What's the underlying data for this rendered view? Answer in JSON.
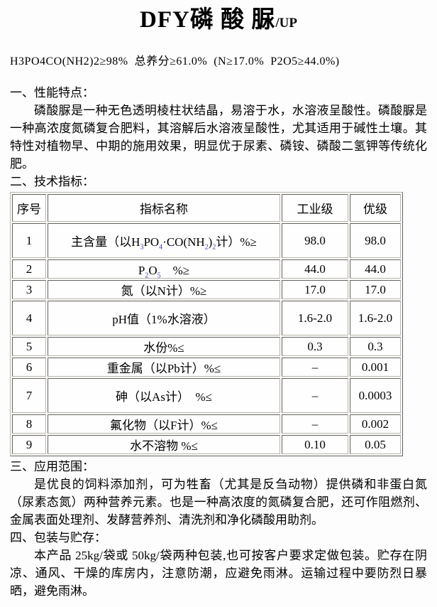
{
  "colors": {
    "background": "#fdfdfd",
    "text": "#000000",
    "subscript_digits": "#3a3aad",
    "table_border": "#b8b4aa"
  },
  "title": {
    "main": "DFY磷 酸 脲",
    "suffix": "/UP"
  },
  "formula_line": "H3PO4CO(NH2)2≥98%  总养分≥61.0%  (N≥17.0%  P2O5≥44.0%)",
  "sections": {
    "performance": {
      "heading": "一、性能特点：",
      "body": "磷酸脲是一种无色透明棱柱状结晶，易溶于水，水溶液呈酸性。磷酸脲是一种高浓度氮磷复合肥料，其溶解后水溶液呈酸性，尤其适用于碱性土壤。其特性对植物早、中期的施用效果，明显优于尿素、磷铵、磷酸二氢钾等传统化肥。"
    },
    "specs": {
      "heading": "二、技术指标："
    },
    "application": {
      "heading": "三、应用范围：",
      "body": "是优良的饲料添加剂，可为牲畜（尤其是反刍动物）提供磷和非蛋白氮（尿素态氮）两种营养元素。也是一种高浓度的氮磷复合肥，还可作阻燃剂、金属表面处理剂、发酵营养剂、清洗剂和净化磷酸用助剂。"
    },
    "packaging": {
      "heading": "四、包装与贮存：",
      "body": "本产品 25kg/袋或 50kg/袋两种包装,也可按客户要求定做包装。贮存在阴凉、通风、干燥的库房内，注意防潮，应避免雨淋。运输过程中要防烈日暴晒，避免雨淋。"
    }
  },
  "table": {
    "headers": [
      "序号",
      "指标名称",
      "工业级",
      "优级"
    ],
    "rows": [
      {
        "no": "1",
        "name": [
          {
            "t": "主含量（以H"
          },
          {
            "sub": "3"
          },
          {
            "t": "PO"
          },
          {
            "sub": "4"
          },
          {
            "t": "·CO(NH"
          },
          {
            "sub": "2"
          },
          {
            "t": ")"
          },
          {
            "sub": "2"
          },
          {
            "t": "计）%≥"
          }
        ],
        "industrial": "98.0",
        "premium": "98.0",
        "tall": true
      },
      {
        "no": "2",
        "name": [
          {
            "t": "P"
          },
          {
            "sub": "2"
          },
          {
            "t": "O"
          },
          {
            "sub": "5"
          },
          {
            "t": "　%≥"
          }
        ],
        "industrial": "44.0",
        "premium": "44.0",
        "tall": false
      },
      {
        "no": "3",
        "name": [
          {
            "t": "氮（以N计）%≥"
          }
        ],
        "industrial": "17.0",
        "premium": "17.0",
        "tall": false
      },
      {
        "no": "4",
        "name": [
          {
            "t": "pH值（1%水溶液）"
          }
        ],
        "industrial": "1.6-2.0",
        "premium": "1.6-2.0",
        "tall": true
      },
      {
        "no": "5",
        "name": [
          {
            "t": "水份%≤"
          }
        ],
        "industrial": "0.3",
        "premium": "0.3",
        "tall": false
      },
      {
        "no": "6",
        "name": [
          {
            "t": "重金属（以Pb计）%≤"
          }
        ],
        "industrial": "–",
        "premium": "0.001",
        "tall": false
      },
      {
        "no": "7",
        "name": [
          {
            "t": "砷（以As计）　%≤"
          }
        ],
        "industrial": "–",
        "premium": "0.0003",
        "tall": true
      },
      {
        "no": "8",
        "name": [
          {
            "t": "氟化物（以F计）%≤"
          }
        ],
        "industrial": "–",
        "premium": "0.002",
        "tall": false
      },
      {
        "no": "9",
        "name": [
          {
            "t": "水不溶物 %≤"
          }
        ],
        "industrial": "0.10",
        "premium": "0.05",
        "tall": false
      }
    ]
  }
}
